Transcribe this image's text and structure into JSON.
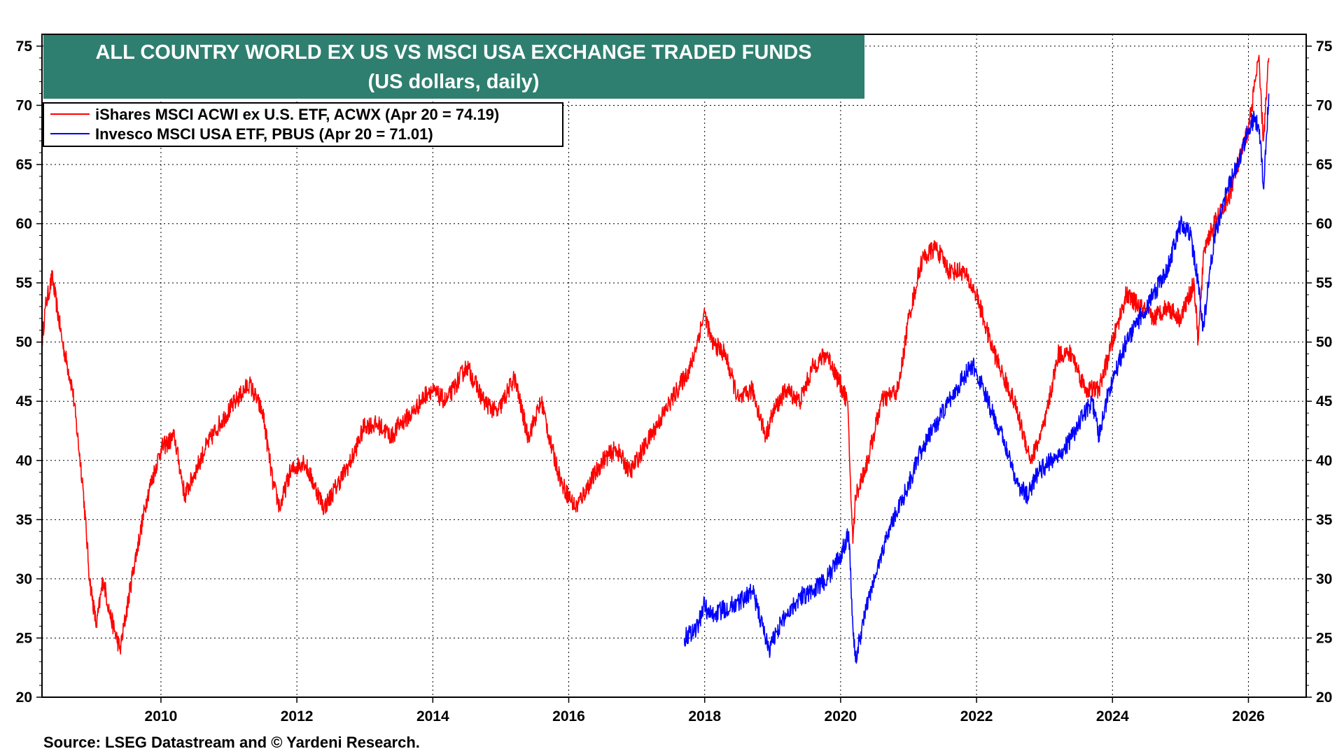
{
  "chart_data": {
    "type": "line",
    "title": "ALL COUNTRY WORLD EX US VS MSCI USA EXCHANGE TRADED FUNDS",
    "subtitle": "(US dollars, daily)",
    "xlabel": "",
    "ylabel": "",
    "xlim": [
      2008.25,
      2026.85
    ],
    "ylim": [
      20,
      76
    ],
    "x_ticks": [
      "2010",
      "2012",
      "2014",
      "2016",
      "2018",
      "2020",
      "2022",
      "2024",
      "2026"
    ],
    "y_ticks": [
      "20",
      "25",
      "30",
      "35",
      "40",
      "45",
      "50",
      "55",
      "60",
      "65",
      "70",
      "75"
    ],
    "grid": true,
    "dual_axis": true,
    "legend_position": "top-left",
    "series": [
      {
        "name": "iShares MSCI ACWI ex U.S. ETF, ACWX (Apr 20 = 74.19)",
        "color": "#ff0000",
        "x": [
          2008.25,
          2008.3,
          2008.4,
          2008.55,
          2008.7,
          2008.85,
          2008.95,
          2009.05,
          2009.15,
          2009.25,
          2009.4,
          2009.6,
          2009.8,
          2010.0,
          2010.2,
          2010.35,
          2010.5,
          2010.65,
          2010.85,
          2011.1,
          2011.3,
          2011.5,
          2011.65,
          2011.75,
          2011.9,
          2012.1,
          2012.25,
          2012.4,
          2012.6,
          2012.8,
          2013.0,
          2013.2,
          2013.4,
          2013.5,
          2013.7,
          2013.95,
          2014.2,
          2014.5,
          2014.75,
          2014.95,
          2015.2,
          2015.4,
          2015.6,
          2015.75,
          2015.9,
          2016.1,
          2016.3,
          2016.5,
          2016.7,
          2016.9,
          2017.2,
          2017.5,
          2017.8,
          2018.0,
          2018.1,
          2018.3,
          2018.5,
          2018.7,
          2018.9,
          2019.0,
          2019.2,
          2019.4,
          2019.6,
          2019.8,
          2020.1,
          2020.18,
          2020.22,
          2020.4,
          2020.6,
          2020.85,
          2021.0,
          2021.2,
          2021.4,
          2021.6,
          2021.8,
          2022.0,
          2022.2,
          2022.4,
          2022.55,
          2022.8,
          2023.0,
          2023.2,
          2023.4,
          2023.6,
          2023.8,
          2024.0,
          2024.2,
          2024.4,
          2024.6,
          2024.8,
          2025.0,
          2025.2,
          2025.26,
          2025.35,
          2025.5,
          2025.7,
          2025.9,
          2026.0,
          2026.1,
          2026.15,
          2026.22,
          2026.3
        ],
        "values": [
          50,
          53,
          55.5,
          50,
          46,
          38,
          30,
          26,
          30,
          27,
          24,
          31,
          37,
          41,
          42,
          37,
          39,
          41,
          43,
          45,
          46.5,
          44,
          38,
          36,
          39,
          40,
          38,
          36,
          38,
          40,
          43,
          43,
          42,
          43,
          44,
          46,
          45,
          48,
          45,
          44,
          47,
          42,
          45,
          41,
          38,
          36,
          38,
          40,
          41,
          39,
          42,
          45,
          48,
          52.5,
          50,
          49,
          45,
          46,
          42,
          44,
          46,
          45,
          48,
          49,
          45,
          33,
          37,
          40,
          45,
          46,
          52,
          57,
          58,
          56,
          56,
          54,
          50,
          47,
          45,
          40,
          43,
          49,
          49,
          46,
          46,
          50,
          54,
          53,
          52,
          53,
          52,
          55,
          50,
          58,
          60,
          62,
          66,
          68,
          72,
          74,
          67,
          74
        ]
      },
      {
        "name": "Invesco MSCI USA ETF, PBUS (Apr 20 = 71.01)",
        "color": "#0000ff",
        "x": [
          2017.7,
          2017.9,
          2018.0,
          2018.05,
          2018.15,
          2018.3,
          2018.5,
          2018.7,
          2018.85,
          2018.95,
          2019.05,
          2019.2,
          2019.4,
          2019.6,
          2019.8,
          2020.0,
          2020.12,
          2020.18,
          2020.22,
          2020.35,
          2020.5,
          2020.7,
          2020.85,
          2021.0,
          2021.2,
          2021.4,
          2021.6,
          2021.8,
          2021.95,
          2022.1,
          2022.3,
          2022.45,
          2022.6,
          2022.75,
          2022.9,
          2023.1,
          2023.3,
          2023.5,
          2023.7,
          2023.8,
          2023.95,
          2024.2,
          2024.4,
          2024.6,
          2024.8,
          2025.0,
          2025.15,
          2025.26,
          2025.33,
          2025.5,
          2025.7,
          2025.9,
          2026.0,
          2026.1,
          2026.18,
          2026.22,
          2026.3
        ],
        "values": [
          25,
          26,
          28,
          27,
          27,
          27.5,
          28,
          29,
          26,
          24,
          25.5,
          27,
          28.5,
          29,
          30,
          32,
          34,
          26,
          23,
          27,
          30,
          34,
          36,
          38,
          41,
          43,
          45,
          47,
          48,
          46,
          43,
          41,
          38,
          37,
          39,
          40,
          41,
          43,
          45,
          42,
          46,
          50,
          52,
          54,
          56,
          60,
          59,
          55,
          51,
          59,
          63,
          66,
          68,
          69,
          67,
          63,
          71
        ]
      }
    ]
  },
  "footer": {
    "source": "Source: LSEG Datastream and © Yardeni Research."
  }
}
